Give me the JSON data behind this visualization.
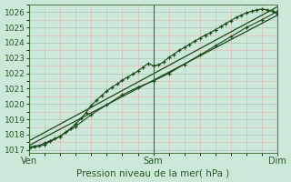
{
  "title": "",
  "xlabel": "Pression niveau de la mer( hPa )",
  "bg_color": "#cce8d8",
  "minor_grid_color": "#e8b0b0",
  "major_grid_color": "#a8c8b0",
  "line_color": "#1a4a1a",
  "spine_color": "#4a7a4a",
  "ylim": [
    1016.8,
    1026.5
  ],
  "xlim": [
    0,
    48
  ],
  "yticks": [
    1017,
    1018,
    1019,
    1020,
    1021,
    1022,
    1023,
    1024,
    1025,
    1026
  ],
  "xtick_labels": [
    "Ven",
    "Sam",
    "Dim"
  ],
  "xtick_positions": [
    0,
    24,
    48
  ],
  "vline_positions": [
    0,
    24,
    48
  ],
  "series_main_x": [
    0,
    1,
    2,
    3,
    4,
    5,
    6,
    7,
    8,
    9,
    10,
    11,
    12,
    13,
    14,
    15,
    16,
    17,
    18,
    19,
    20,
    21,
    22,
    23,
    24,
    25,
    26,
    27,
    28,
    29,
    30,
    31,
    32,
    33,
    34,
    35,
    36,
    37,
    38,
    39,
    40,
    41,
    42,
    43,
    44,
    45,
    46,
    47,
    48
  ],
  "series_main_y": [
    1017.2,
    1017.25,
    1017.3,
    1017.45,
    1017.6,
    1017.75,
    1017.9,
    1018.15,
    1018.4,
    1018.7,
    1019.05,
    1019.45,
    1019.9,
    1020.25,
    1020.55,
    1020.85,
    1021.1,
    1021.3,
    1021.55,
    1021.75,
    1021.95,
    1022.15,
    1022.4,
    1022.65,
    1022.5,
    1022.55,
    1022.75,
    1023.05,
    1023.25,
    1023.5,
    1023.7,
    1023.9,
    1024.1,
    1024.3,
    1024.5,
    1024.65,
    1024.85,
    1025.05,
    1025.25,
    1025.45,
    1025.65,
    1025.8,
    1025.95,
    1026.05,
    1026.15,
    1026.2,
    1026.15,
    1026.05,
    1025.9
  ],
  "series_low_x": [
    0,
    3,
    6,
    9,
    12,
    15,
    18,
    21,
    24,
    27,
    30,
    33,
    36,
    39,
    42,
    45,
    48
  ],
  "series_low_y": [
    1017.1,
    1017.35,
    1017.9,
    1018.55,
    1019.3,
    1019.95,
    1020.6,
    1021.1,
    1021.5,
    1022.0,
    1022.6,
    1023.2,
    1023.8,
    1024.4,
    1025.0,
    1025.5,
    1026.05
  ],
  "series_trend1_x": [
    0,
    48
  ],
  "series_trend1_y": [
    1017.3,
    1025.8
  ],
  "series_trend2_x": [
    0,
    48
  ],
  "series_trend2_y": [
    1017.6,
    1026.35
  ]
}
